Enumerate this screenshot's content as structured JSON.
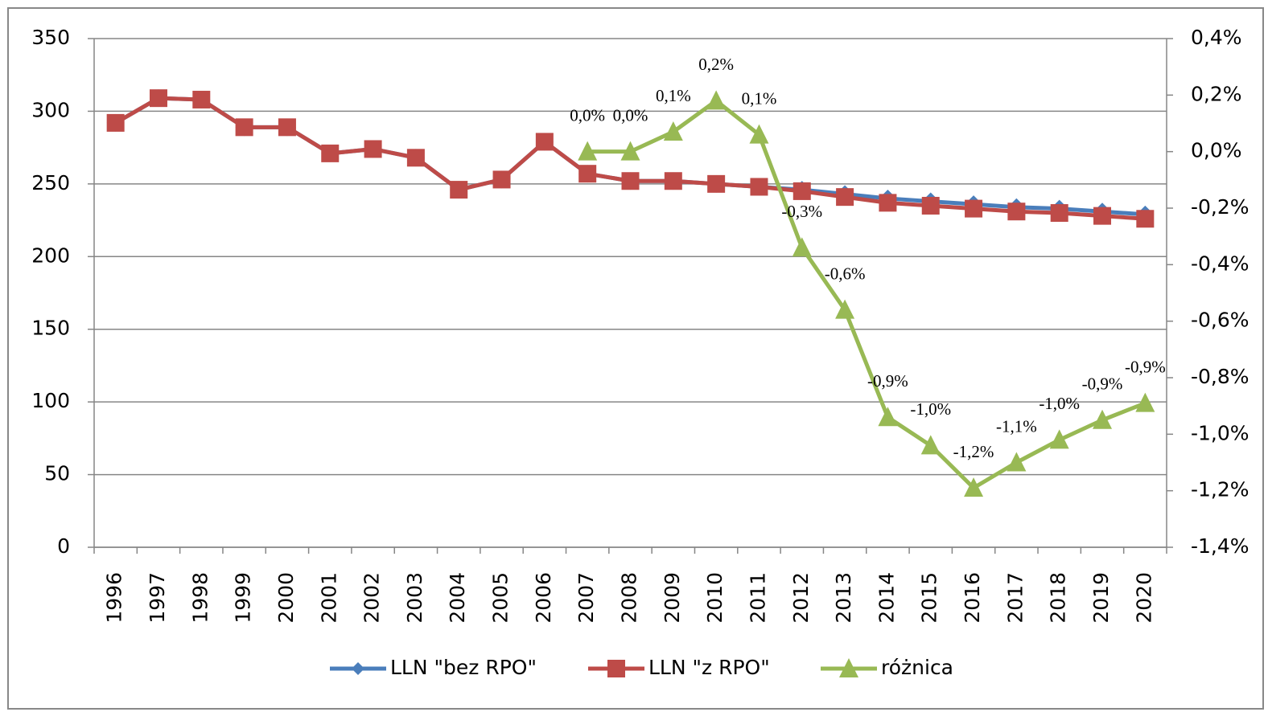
{
  "chart_data": {
    "type": "line",
    "categories": [
      "1996",
      "1997",
      "1998",
      "1999",
      "2000",
      "2001",
      "2002",
      "2003",
      "2004",
      "2005",
      "2006",
      "2007",
      "2008",
      "2009",
      "2010",
      "2011",
      "2012",
      "2013",
      "2014",
      "2015",
      "2016",
      "2017",
      "2018",
      "2019",
      "2020"
    ],
    "series": [
      {
        "name": "LLN \"bez RPO\"",
        "color": "#4a7ebb",
        "marker": "diamond",
        "values": [
          292,
          309,
          308,
          289,
          289,
          271,
          274,
          268,
          246,
          253,
          279,
          257,
          252,
          252,
          250,
          248,
          246,
          243,
          240,
          238,
          236,
          234,
          233,
          231,
          229
        ]
      },
      {
        "name": "LLN \"z RPO\"",
        "color": "#be4b48",
        "marker": "square",
        "values": [
          292,
          309,
          308,
          289,
          289,
          271,
          274,
          268,
          246,
          253,
          279,
          257,
          252,
          252,
          250,
          248,
          245,
          241,
          237,
          235,
          233,
          231,
          230,
          228,
          226
        ]
      },
      {
        "name": "różnica",
        "color": "#98b954",
        "marker": "triangle",
        "axis": "y2",
        "values": [
          null,
          null,
          null,
          null,
          null,
          null,
          null,
          null,
          null,
          null,
          null,
          0.0,
          0.0,
          0.07,
          0.18,
          0.06,
          -0.34,
          -0.56,
          -0.94,
          -1.04,
          -1.19,
          -1.1,
          -1.02,
          -0.95,
          -0.89
        ],
        "value_labels": [
          null,
          null,
          null,
          null,
          null,
          null,
          null,
          null,
          null,
          null,
          null,
          "0,0%",
          "0,0%",
          "0,1%",
          "0,2%",
          "0,1%",
          "-0,3%",
          "-0,6%",
          "-0,9%",
          "-1,0%",
          "-1,2%",
          "-1,1%",
          "-1,0%",
          "-0,9%",
          "-0,9%"
        ]
      }
    ],
    "ylim": [
      0,
      350
    ],
    "yticks": [
      0,
      50,
      100,
      150,
      200,
      250,
      300,
      350
    ],
    "y2lim": [
      -1.4,
      0.4
    ],
    "y2ticks": [
      {
        "value": -1.4,
        "label": "-1,4%"
      },
      {
        "value": -1.2,
        "label": "-1,2%"
      },
      {
        "value": -1.0,
        "label": "-1,0%"
      },
      {
        "value": -0.8,
        "label": "-0,8%"
      },
      {
        "value": -0.6,
        "label": "-0,6%"
      },
      {
        "value": -0.4,
        "label": "-0,4%"
      },
      {
        "value": -0.2,
        "label": "-0,2%"
      },
      {
        "value": 0.0,
        "label": "0,0%"
      },
      {
        "value": 0.2,
        "label": "0,2%"
      },
      {
        "value": 0.4,
        "label": "0,4%"
      }
    ],
    "grid": true,
    "legend": "bottom"
  }
}
